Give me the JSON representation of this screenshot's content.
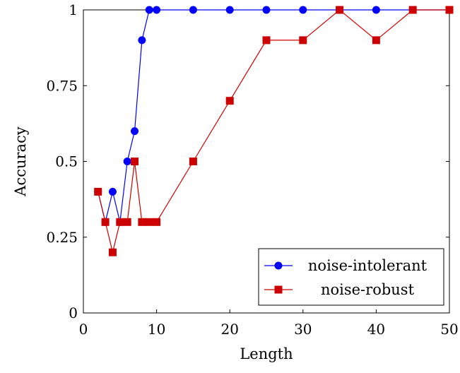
{
  "chart_data": {
    "type": "line",
    "title": "",
    "xlabel": "Length",
    "ylabel": "Accuracy",
    "xlim": [
      0,
      50
    ],
    "ylim": [
      0,
      1
    ],
    "xticks": [
      0,
      10,
      20,
      30,
      40,
      50
    ],
    "yticks": [
      0,
      0.25,
      0.5,
      0.75,
      1
    ],
    "ytick_labels": [
      "0",
      "0.25",
      "0.5",
      "0.75",
      "1"
    ],
    "grid": false,
    "legend_position": "bottom-right",
    "series": [
      {
        "name": "noise-intolerant",
        "color": "#0000ff",
        "marker": "circle",
        "x": [
          2,
          3,
          4,
          5,
          6,
          7,
          8,
          9,
          10,
          15,
          20,
          25,
          30,
          35,
          40,
          45,
          50
        ],
        "y": [
          0.4,
          0.3,
          0.4,
          0.3,
          0.5,
          0.6,
          0.9,
          1,
          1,
          1,
          1,
          1,
          1,
          1,
          1,
          1,
          1
        ]
      },
      {
        "name": "noise-robust",
        "color": "#cc0000",
        "marker": "square",
        "x": [
          2,
          3,
          4,
          5,
          6,
          7,
          8,
          9,
          10,
          15,
          20,
          25,
          30,
          35,
          40,
          45,
          50
        ],
        "y": [
          0.4,
          0.3,
          0.2,
          0.3,
          0.3,
          0.5,
          0.3,
          0.3,
          0.3,
          0.5,
          0.7,
          0.9,
          0.9,
          1,
          0.9,
          1,
          1
        ]
      }
    ]
  }
}
